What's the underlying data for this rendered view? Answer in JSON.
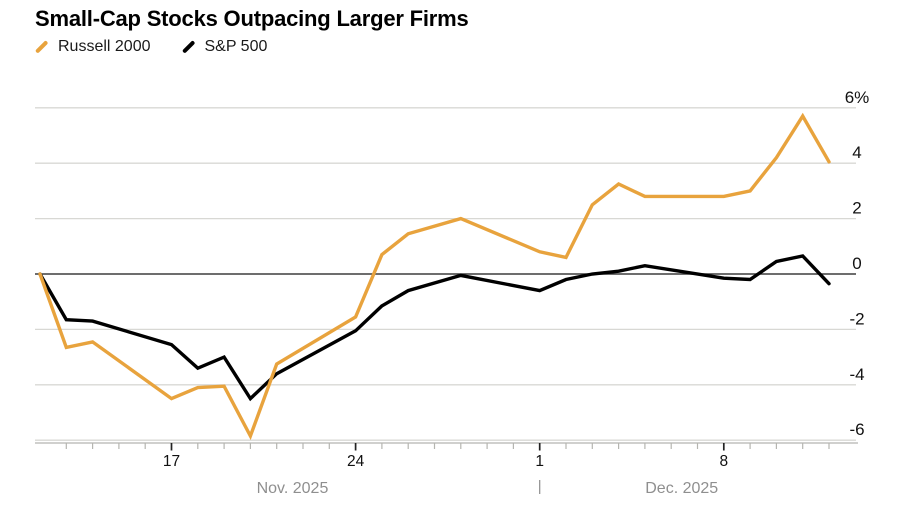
{
  "title": "Small-Cap Stocks Outpacing Larger Firms",
  "legend": {
    "items": [
      {
        "label": "Russell 2000",
        "color": "#E8A33D"
      },
      {
        "label": "S&P 500",
        "color": "#000000"
      }
    ]
  },
  "chart_data": {
    "type": "line",
    "title": "Small-Cap Stocks Outpacing Larger Firms",
    "ylabel": "",
    "xlabel": "",
    "grid": true,
    "legend_position": "top-left",
    "ylim": [
      -6.8,
      6.4
    ],
    "unit": "%",
    "x_dates": [
      "Nov 12",
      "Nov 13",
      "Nov 14",
      "Nov 17",
      "Nov 18",
      "Nov 19",
      "Nov 20",
      "Nov 21",
      "Nov 24",
      "Nov 25",
      "Nov 26",
      "Nov 28",
      "Dec 1",
      "Dec 2",
      "Dec 3",
      "Dec 4",
      "Dec 5",
      "Dec 8",
      "Dec 9",
      "Dec 10",
      "Dec 11",
      "Dec 12"
    ],
    "x_day_offsets": [
      0,
      1,
      2,
      5,
      6,
      7,
      8,
      9,
      12,
      13,
      14,
      16,
      19,
      20,
      21,
      22,
      23,
      26,
      27,
      28,
      29,
      30
    ],
    "series": [
      {
        "name": "Russell 2000",
        "color": "#E8A33D",
        "values": [
          0,
          -2.65,
          -2.45,
          -4.5,
          -4.1,
          -4.05,
          -5.85,
          -3.25,
          -1.55,
          0.7,
          1.45,
          2.0,
          0.8,
          0.6,
          2.5,
          3.25,
          2.8,
          2.8,
          3.0,
          4.2,
          5.7,
          4.05
        ]
      },
      {
        "name": "S&P 500",
        "color": "#000000",
        "values": [
          0,
          -1.65,
          -1.7,
          -2.55,
          -3.4,
          -3.0,
          -4.5,
          -3.6,
          -2.05,
          -1.15,
          -0.6,
          -0.05,
          -0.6,
          -0.2,
          0.0,
          0.1,
          0.3,
          -0.15,
          -0.2,
          0.45,
          0.65,
          -0.35
        ]
      }
    ],
    "yticks": [
      {
        "value": 6,
        "label": "6%"
      },
      {
        "value": 4,
        "label": "4"
      },
      {
        "value": 2,
        "label": "2"
      },
      {
        "value": 0,
        "label": "0"
      },
      {
        "value": -2,
        "label": "-2"
      },
      {
        "value": -4,
        "label": "-4"
      },
      {
        "value": -6,
        "label": "-6"
      }
    ],
    "xticks_major": [
      {
        "day_offset": 5,
        "label": "17"
      },
      {
        "day_offset": 12,
        "label": "24"
      },
      {
        "day_offset": 19,
        "label": "1"
      },
      {
        "day_offset": 26,
        "label": "8"
      }
    ],
    "minor_tick_days": [
      1,
      30
    ],
    "month_labels": [
      {
        "label": "Nov. 2025",
        "day_offset": 9.6
      },
      {
        "label": "Dec. 2025",
        "day_offset": 24.4
      }
    ],
    "month_separator": {
      "label": "|",
      "day_offset": 19
    },
    "colors": {
      "gridline": "#d8d8d4",
      "zero_line": "#3d3d3d",
      "axis_line": "#b5b5b0",
      "tick_label": "#111111",
      "month_label": "#8f8f8f"
    }
  }
}
